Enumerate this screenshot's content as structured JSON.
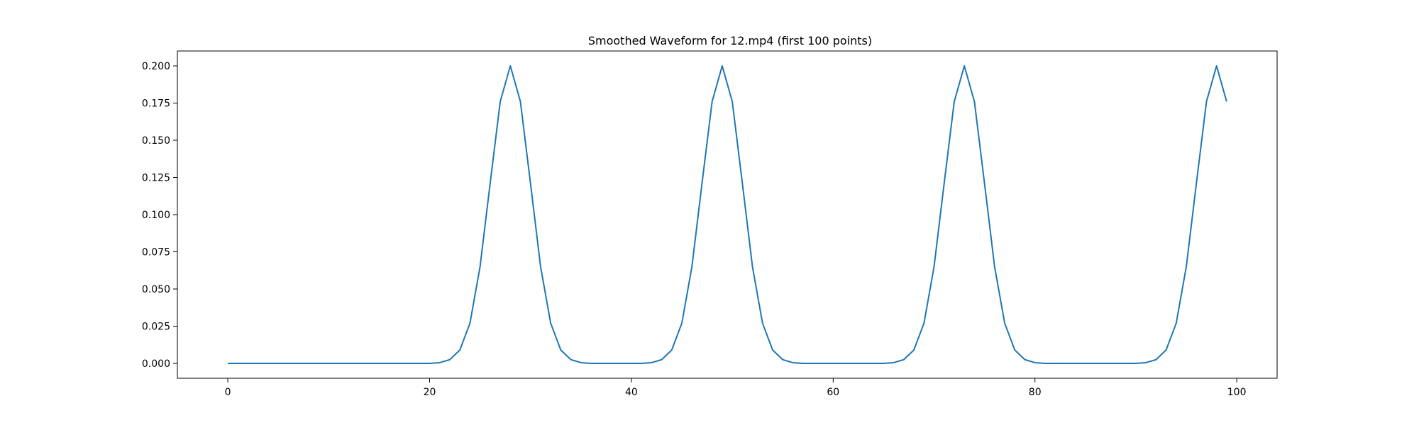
{
  "chart_data": {
    "type": "line",
    "title": "Smoothed Waveform for 12.mp4 (first 100 points)",
    "xlabel": "",
    "ylabel": "",
    "xlim": [
      -5,
      104
    ],
    "ylim": [
      -0.01,
      0.21
    ],
    "xticks": [
      0,
      20,
      40,
      60,
      80,
      100
    ],
    "yticks": [
      0.0,
      0.025,
      0.05,
      0.075,
      0.1,
      0.125,
      0.15,
      0.175,
      0.2
    ],
    "xtick_labels": [
      "0",
      "20",
      "40",
      "60",
      "80",
      "100"
    ],
    "ytick_labels": [
      "0.000",
      "0.025",
      "0.050",
      "0.075",
      "0.100",
      "0.125",
      "0.150",
      "0.175",
      "0.200"
    ],
    "grid": false,
    "legend": "none",
    "line_color": "#1f77b4",
    "series": [
      {
        "x": [
          0,
          1,
          2,
          3,
          4,
          5,
          6,
          7,
          8,
          9,
          10,
          11,
          12,
          13,
          14,
          15,
          16,
          17,
          18,
          19,
          20,
          21,
          22,
          23,
          24,
          25,
          26,
          27,
          28,
          29,
          30,
          31,
          32,
          33,
          34,
          35,
          36,
          37,
          38,
          39,
          40,
          41,
          42,
          43,
          44,
          45,
          46,
          47,
          48,
          49,
          50,
          51,
          52,
          53,
          54,
          55,
          56,
          57,
          58,
          59,
          60,
          61,
          62,
          63,
          64,
          65,
          66,
          67,
          68,
          69,
          70,
          71,
          72,
          73,
          74,
          75,
          76,
          77,
          78,
          79,
          80,
          81,
          82,
          83,
          84,
          85,
          86,
          87,
          88,
          89,
          90,
          91,
          92,
          93,
          94,
          95,
          96,
          97,
          98,
          99
        ],
        "values": [
          0,
          0,
          0,
          0,
          0,
          0,
          0,
          0,
          0,
          0,
          0,
          0,
          0,
          0,
          0,
          0,
          0,
          0,
          0,
          0,
          0,
          0.0005,
          0.0025,
          0.009,
          0.027,
          0.065,
          0.121,
          0.176,
          0.2,
          0.176,
          0.121,
          0.065,
          0.027,
          0.009,
          0.0025,
          0.0005,
          0,
          0,
          0,
          0,
          0,
          0,
          0.0005,
          0.0025,
          0.009,
          0.027,
          0.065,
          0.121,
          0.176,
          0.2,
          0.176,
          0.121,
          0.065,
          0.027,
          0.009,
          0.0025,
          0.0005,
          0,
          0,
          0,
          0,
          0,
          0,
          0,
          0,
          0,
          0.0005,
          0.0025,
          0.009,
          0.027,
          0.065,
          0.121,
          0.176,
          0.2,
          0.176,
          0.121,
          0.065,
          0.027,
          0.009,
          0.0025,
          0.0005,
          0,
          0,
          0,
          0,
          0,
          0,
          0,
          0,
          0,
          0,
          0.0005,
          0.0025,
          0.009,
          0.027,
          0.065,
          0.121,
          0.176,
          0.2,
          0.176
        ]
      }
    ]
  }
}
